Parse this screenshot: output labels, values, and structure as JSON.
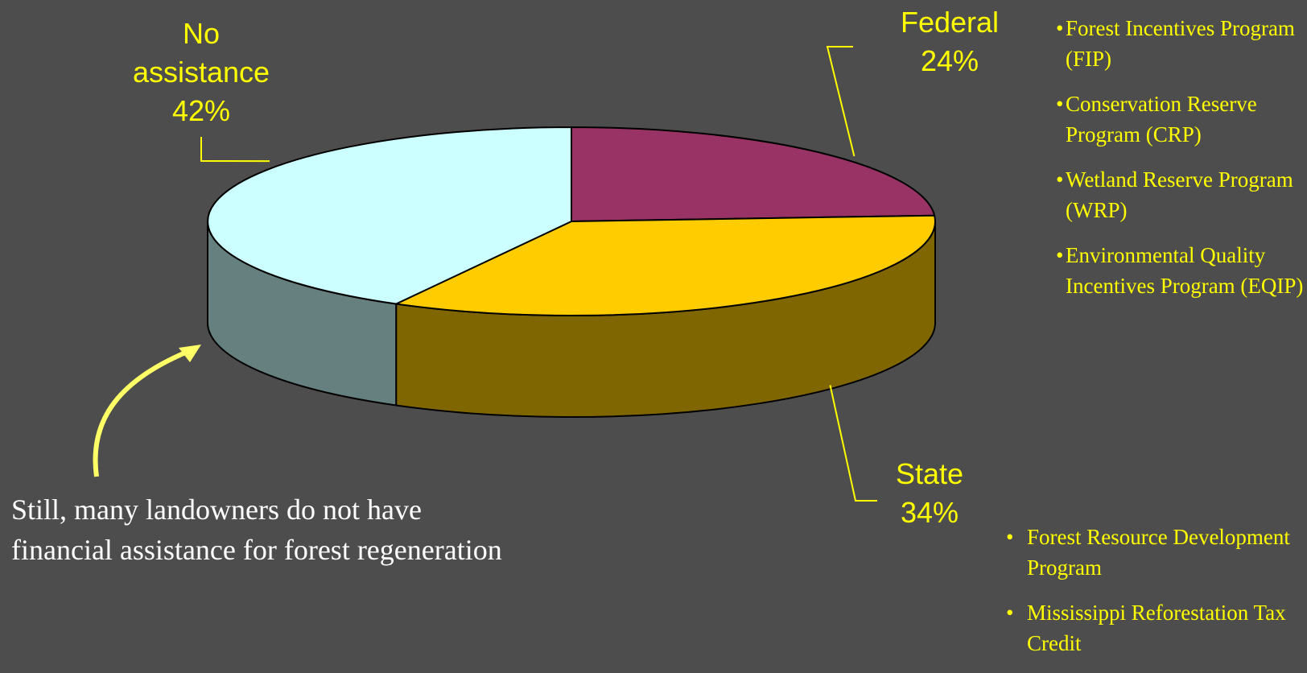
{
  "chart_data": {
    "type": "pie",
    "slices": [
      {
        "label": "Federal",
        "value": 24,
        "display": "24%",
        "color": "#993366",
        "side_color": "#6b2448"
      },
      {
        "label": "State",
        "value": 34,
        "display": "34%",
        "color": "#ffcc00",
        "side_color": "#806600"
      },
      {
        "label": "No assistance",
        "value": 42,
        "display": "42%",
        "color": "#ccffff",
        "side_color": "#668080"
      }
    ],
    "label_lines": {
      "federal": [
        "Federal",
        "24%"
      ],
      "state": [
        "State",
        "34%"
      ],
      "no_assistance": [
        "No",
        "assistance",
        "42%"
      ]
    },
    "label_color": "#ffff00"
  },
  "federal_programs": [
    "Forest Incentives Program (FIP)",
    "Conservation Reserve Program (CRP)",
    "Wetland Reserve Program (WRP)",
    "Environmental Quality Incentives Program (EQIP)"
  ],
  "state_programs": [
    "Forest Resource Development Program",
    "Mississippi Reforestation Tax Credit"
  ],
  "note": "Still, many landowners do not have financial assistance for forest regeneration",
  "colors": {
    "background": "#4d4d4d",
    "accent": "#ffff00",
    "arrow": "#ffff66"
  }
}
